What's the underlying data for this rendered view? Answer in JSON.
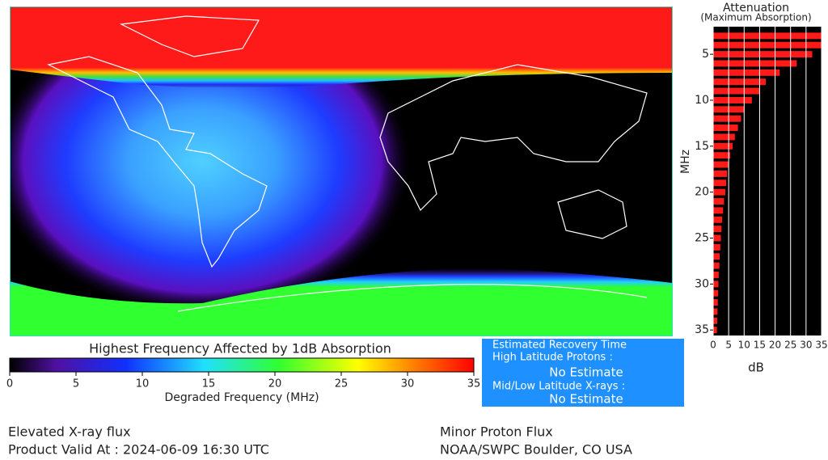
{
  "colorbar": {
    "title": "Highest Frequency Affected by 1dB Absorption",
    "label": "Degraded Frequency (MHz)",
    "range": [
      0,
      35
    ],
    "ticks": [
      0,
      5,
      10,
      15,
      20,
      25,
      30,
      35
    ]
  },
  "recovery": {
    "title": "Estimated Recovery Time",
    "high_label": "High Latitude Protons :",
    "high_value": "No Estimate",
    "low_label": "Mid/Low Latitude X-rays :",
    "low_value": "No Estimate"
  },
  "footer": {
    "left_1": "Elevated X-ray flux",
    "left_2": "Product Valid At : 2024-06-09 16:30 UTC",
    "right_1": "Minor Proton Flux",
    "right_2": "NOAA/SWPC Boulder, CO USA"
  },
  "chart_data": {
    "type": "bar",
    "orientation": "horizontal",
    "title": "Attenuation",
    "subtitle": "(Maximum Absorption)",
    "x_label": "dB",
    "y_label": "MHz",
    "y": [
      3,
      4,
      5,
      6,
      7,
      8,
      9,
      10,
      11,
      12,
      13,
      14,
      15,
      16,
      17,
      18,
      19,
      20,
      21,
      22,
      23,
      24,
      25,
      26,
      27,
      28,
      29,
      30,
      31,
      32,
      33,
      34,
      35
    ],
    "values": [
      35,
      35,
      32,
      27,
      21.5,
      17,
      15,
      12.5,
      10,
      9,
      8,
      7,
      6.3,
      5.5,
      5,
      4.5,
      4.2,
      3.9,
      3.5,
      3.2,
      2.9,
      2.7,
      2.5,
      2.3,
      2.1,
      2,
      1.8,
      1.7,
      1.6,
      1.5,
      1.4,
      1.3,
      1.2
    ],
    "color": "#ff1a1a",
    "xlim": [
      0,
      35
    ],
    "xticks": [
      0,
      5,
      10,
      15,
      20,
      25,
      30,
      35
    ],
    "ylim": [
      2,
      35.6
    ],
    "yticks": [
      5,
      10,
      15,
      20,
      25,
      30,
      35
    ],
    "y_inverted": true,
    "grid": true
  }
}
